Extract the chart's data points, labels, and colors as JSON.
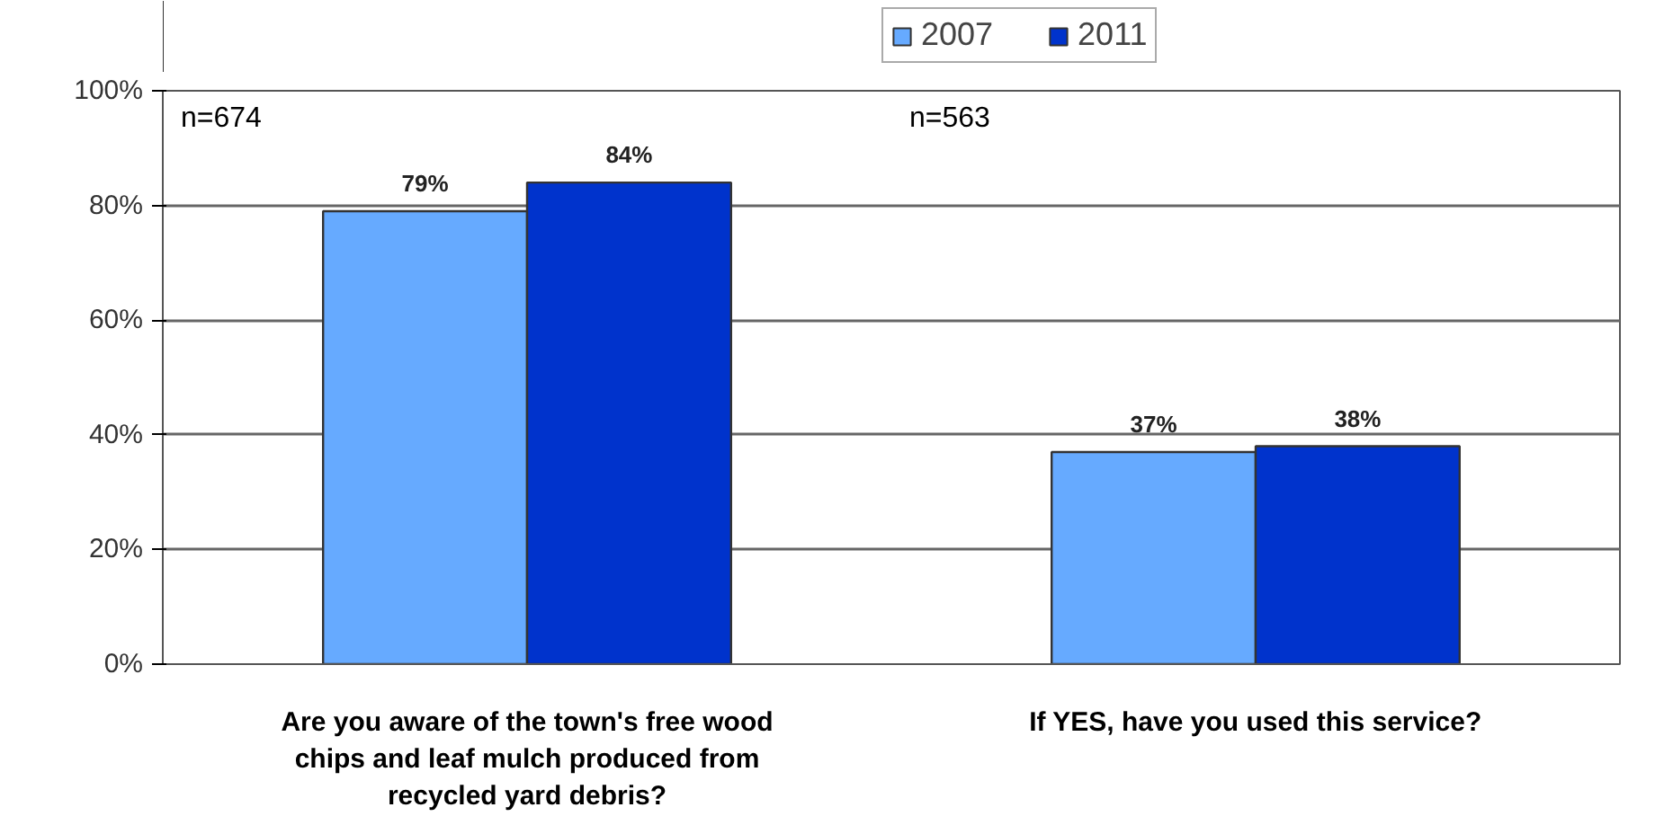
{
  "chart_data": {
    "type": "bar",
    "categories": [
      "Are you aware of the town's free wood chips and leaf mulch produced from recycled yard debris?",
      "If YES, have you used this service?"
    ],
    "series": [
      {
        "name": "2007",
        "color": "#66aaff",
        "values": [
          79,
          37
        ]
      },
      {
        "name": "2011",
        "color": "#0033cc",
        "values": [
          84,
          38
        ]
      }
    ],
    "value_labels": [
      [
        "79%",
        "37%"
      ],
      [
        "84%",
        "38%"
      ]
    ],
    "annotations": [
      "n=674",
      "n=563"
    ],
    "ylim": [
      0,
      100
    ],
    "yticks": [
      {
        "value": 0,
        "label": "0%"
      },
      {
        "value": 20,
        "label": "20%"
      },
      {
        "value": 40,
        "label": "40%"
      },
      {
        "value": 60,
        "label": "60%"
      },
      {
        "value": 80,
        "label": "80%"
      },
      {
        "value": 100,
        "label": "100%"
      }
    ],
    "grid": "y",
    "legend": "top"
  }
}
